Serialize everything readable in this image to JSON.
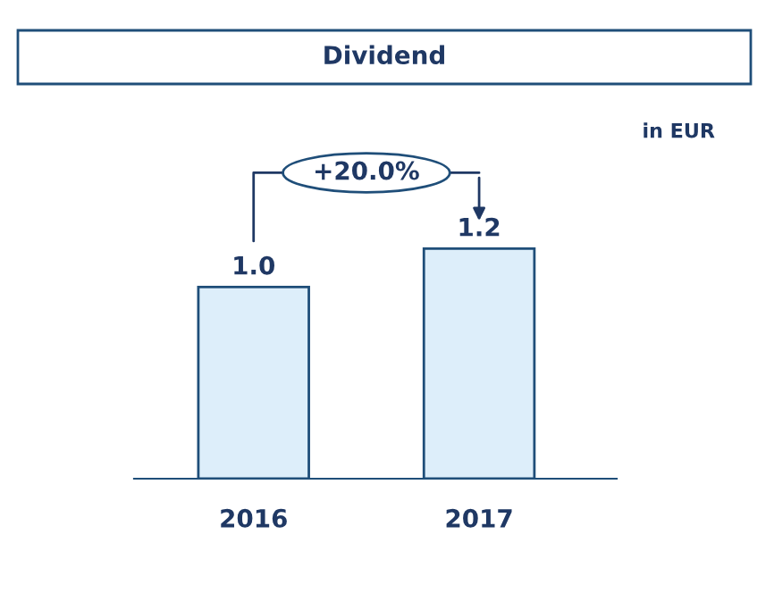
{
  "chart_data": {
    "type": "bar",
    "title": "Dividend",
    "categories": [
      "2016",
      "2017"
    ],
    "values": [
      1.0,
      1.2
    ],
    "color": "#ddeefa",
    "value_labels": [
      "1.0",
      "1.2"
    ],
    "annotations": [
      "in EUR",
      "+20.0%"
    ],
    "grid": false,
    "legend": false
  }
}
